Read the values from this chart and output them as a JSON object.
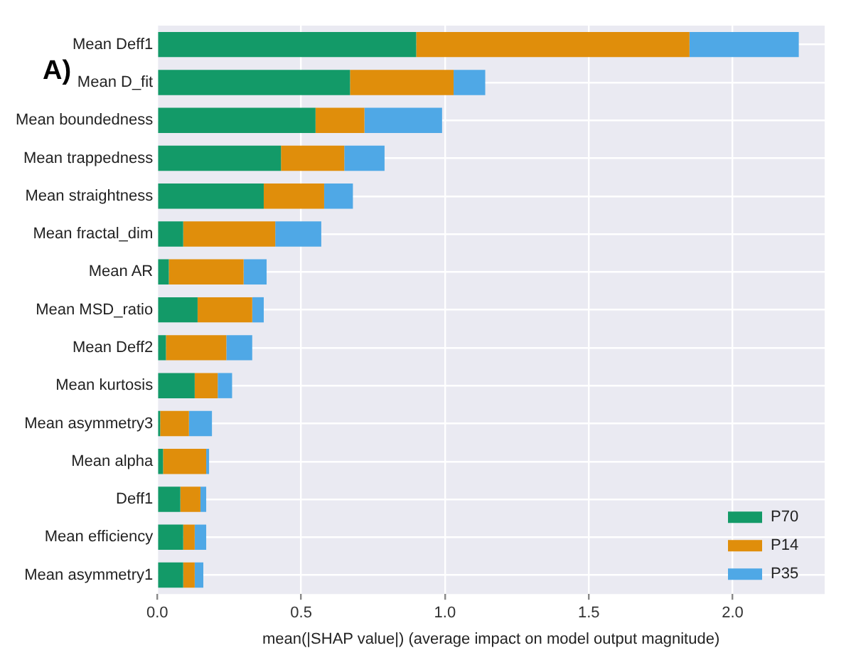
{
  "chart_data": {
    "type": "bar",
    "orientation": "horizontal",
    "stacked": true,
    "categories": [
      "Mean Deff1",
      "Mean D_fit",
      "Mean boundedness",
      "Mean trappedness",
      "Mean straightness",
      "Mean fractal_dim",
      "Mean AR",
      "Mean MSD_ratio",
      "Mean Deff2",
      "Mean kurtosis",
      "Mean asymmetry3",
      "Mean alpha",
      "Deff1",
      "Mean efficiency",
      "Mean asymmetry1"
    ],
    "series": [
      {
        "name": "P70",
        "color": "#139a68",
        "values": [
          0.9,
          0.67,
          0.55,
          0.43,
          0.37,
          0.09,
          0.04,
          0.14,
          0.03,
          0.13,
          0.01,
          0.02,
          0.08,
          0.09,
          0.09
        ]
      },
      {
        "name": "P14",
        "color": "#e08e0b",
        "values": [
          0.95,
          0.36,
          0.17,
          0.22,
          0.21,
          0.32,
          0.26,
          0.19,
          0.21,
          0.08,
          0.1,
          0.15,
          0.07,
          0.04,
          0.04
        ]
      },
      {
        "name": "P35",
        "color": "#4fa8e6",
        "values": [
          0.38,
          0.11,
          0.27,
          0.14,
          0.1,
          0.16,
          0.08,
          0.04,
          0.09,
          0.05,
          0.08,
          0.01,
          0.02,
          0.04,
          0.03
        ]
      }
    ],
    "xlim": [
      0,
      2.32
    ],
    "xticks": [
      {
        "value": 0,
        "label": "0.0"
      },
      {
        "value": 0.5,
        "label": "0.5"
      },
      {
        "value": 1,
        "label": "1.0"
      },
      {
        "value": 1.5,
        "label": "1.5"
      },
      {
        "value": 2,
        "label": "2.0"
      }
    ],
    "xlabel": "mean(|SHAP value|) (average impact on model output magnitude)",
    "annotations": [
      "A)"
    ],
    "grid": true,
    "legend": "bottom right"
  }
}
